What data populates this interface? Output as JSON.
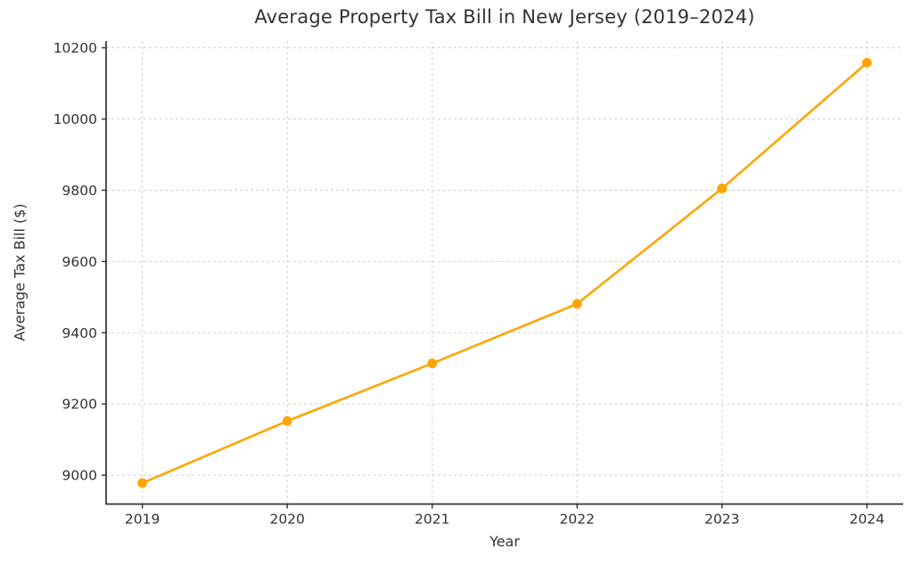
{
  "title": "Average Property Tax Bill in New Jersey (2019–2024)",
  "chart_data": {
    "type": "line",
    "title": "Average Property Tax Bill in New Jersey (2019–2024)",
    "xlabel": "Year",
    "ylabel": "Average Tax Bill ($)",
    "x": [
      2019,
      2020,
      2021,
      2022,
      2023,
      2024
    ],
    "values": [
      8978,
      9152,
      9314,
      9481,
      9805,
      10158
    ],
    "xticks": [
      2019,
      2020,
      2021,
      2022,
      2023,
      2024
    ],
    "yticks": [
      9000,
      9200,
      9400,
      9600,
      9800,
      10000,
      10200
    ],
    "xlim": [
      2018.75,
      2024.25
    ],
    "ylim": [
      8919,
      10219
    ],
    "grid": true,
    "grid_style": "dashed",
    "legend": "none",
    "line_color": "#FFA500",
    "marker": "circle",
    "marker_color": "#FFA500",
    "grid_color": "#cccccc",
    "axis_color": "#333333",
    "text_color": "#333333",
    "background_color": "#ffffff"
  }
}
